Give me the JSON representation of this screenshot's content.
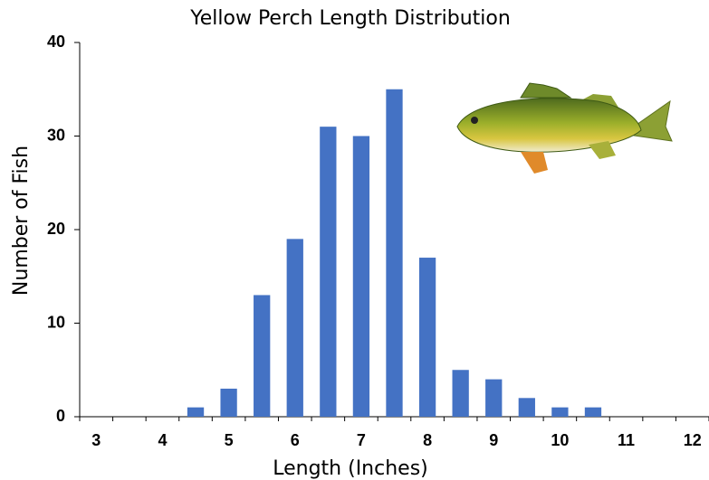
{
  "chart_data": {
    "type": "bar",
    "title": "Yellow Perch Length Distribution",
    "x_label": "Length (Inches)",
    "y_label": "Number of Fish",
    "categories": [
      "3",
      null,
      "4",
      null,
      "5",
      null,
      "6",
      null,
      "7",
      null,
      "8",
      null,
      "9",
      null,
      "10",
      null,
      "11",
      null,
      "12"
    ],
    "values": [
      0,
      0,
      0,
      1,
      3,
      13,
      19,
      31,
      30,
      35,
      17,
      5,
      4,
      2,
      1,
      1,
      0,
      0,
      0
    ],
    "color": "#4472c4",
    "ylim": [
      0,
      40
    ],
    "yticks": [
      0,
      10,
      20,
      30,
      40
    ],
    "grid": false
  }
}
